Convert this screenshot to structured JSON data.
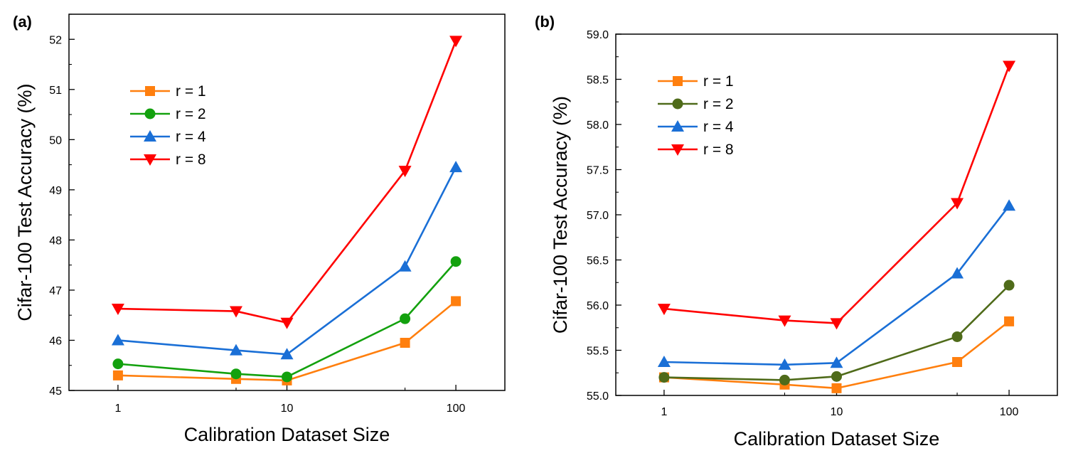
{
  "chart_data": [
    {
      "panel_label": "(a)",
      "type": "line",
      "xscale": "log",
      "x": [
        1,
        5,
        10,
        50,
        100
      ],
      "xticks": [
        1,
        10,
        100
      ],
      "xtick_labels": [
        "1",
        "10",
        "100"
      ],
      "xlabel": "Calibration Dataset Size",
      "ylabel": "Cifar-100 Test Accuracy (%)",
      "ylim": [
        45,
        52.5
      ],
      "yticks": [
        45,
        46,
        47,
        48,
        49,
        50,
        51,
        52
      ],
      "ytick_labels": [
        "45",
        "46",
        "47",
        "48",
        "49",
        "50",
        "51",
        "52"
      ],
      "legend_position": "upper-left",
      "series": [
        {
          "name": "r = 1",
          "color": "#ff7f0e",
          "marker": "square",
          "values": [
            45.3,
            45.23,
            45.2,
            45.95,
            46.78
          ]
        },
        {
          "name": "r = 2",
          "color": "#13a10e",
          "marker": "circle",
          "values": [
            45.53,
            45.33,
            45.27,
            46.43,
            47.57
          ]
        },
        {
          "name": "r = 4",
          "color": "#1a6fd6",
          "marker": "triangle-up",
          "values": [
            46.0,
            45.8,
            45.72,
            47.47,
            49.45
          ]
        },
        {
          "name": "r = 8",
          "color": "#ff0000",
          "marker": "triangle-down",
          "values": [
            46.63,
            46.58,
            46.35,
            49.38,
            51.97
          ]
        }
      ]
    },
    {
      "panel_label": "(b)",
      "type": "line",
      "xscale": "log",
      "x": [
        1,
        5,
        10,
        50,
        100
      ],
      "xticks": [
        1,
        10,
        100
      ],
      "xtick_labels": [
        "1",
        "10",
        "100"
      ],
      "xlabel": "Calibration Dataset Size",
      "ylabel": "Cifar-100 Test Accuracy (%)",
      "ylim": [
        55.0,
        59.0
      ],
      "yticks": [
        55.0,
        55.5,
        56.0,
        56.5,
        57.0,
        57.5,
        58.0,
        58.5,
        59.0
      ],
      "ytick_labels": [
        "55.0",
        "55.5",
        "56.0",
        "56.5",
        "57.0",
        "57.5",
        "58.0",
        "58.5",
        "59.0"
      ],
      "legend_position": "upper-left",
      "series": [
        {
          "name": "r = 1",
          "color": "#ff7f0e",
          "marker": "square",
          "values": [
            55.2,
            55.12,
            55.08,
            55.37,
            55.82
          ]
        },
        {
          "name": "r = 2",
          "color": "#4f6b1a",
          "marker": "circle",
          "values": [
            55.2,
            55.17,
            55.21,
            55.65,
            56.22
          ]
        },
        {
          "name": "r = 4",
          "color": "#1a6fd6",
          "marker": "triangle-up",
          "values": [
            55.37,
            55.34,
            55.36,
            56.35,
            57.1
          ]
        },
        {
          "name": "r = 8",
          "color": "#ff0000",
          "marker": "triangle-down",
          "values": [
            55.96,
            55.83,
            55.8,
            57.13,
            58.65
          ]
        }
      ]
    }
  ]
}
